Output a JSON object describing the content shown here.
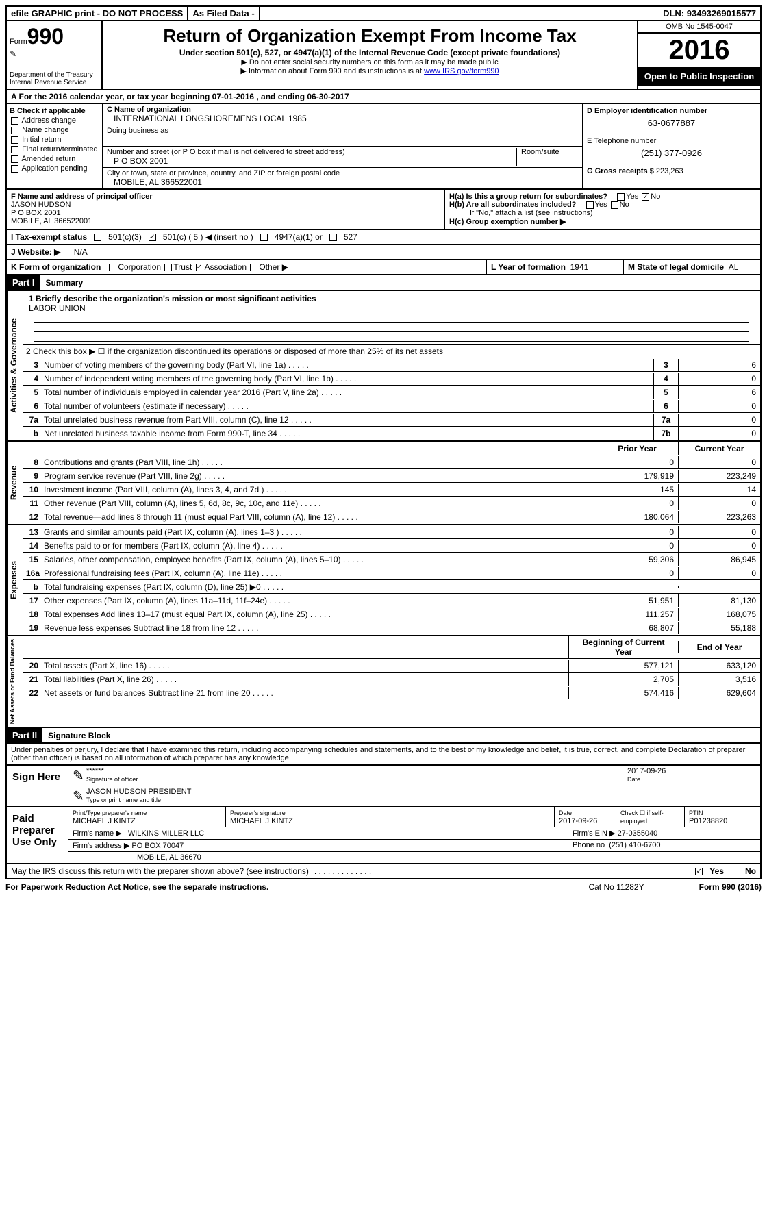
{
  "topbar": {
    "efile": "efile GRAPHIC print - DO NOT PROCESS",
    "asfiled": "As Filed Data -",
    "dln_label": "DLN:",
    "dln": "93493269015577"
  },
  "header": {
    "form_label": "Form",
    "form_num": "990",
    "dept1": "Department of the Treasury",
    "dept2": "Internal Revenue Service",
    "title": "Return of Organization Exempt From Income Tax",
    "subtitle": "Under section 501(c), 527, or 4947(a)(1) of the Internal Revenue Code (except private foundations)",
    "note1": "▶ Do not enter social security numbers on this form as it may be made public",
    "note2": "▶ Information about Form 990 and its instructions is at ",
    "note2_link": "www IRS gov/form990",
    "omb": "OMB No 1545-0047",
    "year": "2016",
    "open_pub": "Open to Public Inspection"
  },
  "rowA": "A  For the 2016 calendar year, or tax year beginning 07-01-2016   , and ending 06-30-2017",
  "colB": {
    "title": "B Check if applicable",
    "items": [
      "Address change",
      "Name change",
      "Initial return",
      "Final return/terminated",
      "Amended return",
      "Application pending"
    ]
  },
  "colC": {
    "c_label": "C Name of organization",
    "c_val": "INTERNATIONAL LONGSHOREMENS LOCAL 1985",
    "dba_label": "Doing business as",
    "addr_label": "Number and street (or P O  box if mail is not delivered to street address)",
    "room_label": "Room/suite",
    "addr_val": "P O BOX 2001",
    "city_label": "City or town, state or province, country, and ZIP or foreign postal code",
    "city_val": "MOBILE, AL  366522001"
  },
  "colD": {
    "d_label": "D Employer identification number",
    "d_val": "63-0677887",
    "e_label": "E Telephone number",
    "e_val": "(251) 377-0926",
    "g_label": "G Gross receipts $",
    "g_val": "223,263"
  },
  "rowF": {
    "f_label": "F  Name and address of principal officer",
    "name": "JASON HUDSON",
    "addr1": "P O BOX 2001",
    "addr2": "MOBILE, AL  366522001",
    "ha": "H(a)  Is this a group return for subordinates?",
    "hb": "H(b)  Are all subordinates included?",
    "hb_note": "If \"No,\" attach a list  (see instructions)",
    "hc": "H(c)  Group exemption number ▶",
    "yes": "Yes",
    "no": "No"
  },
  "rowI": {
    "label": "I   Tax-exempt status",
    "opt1": "501(c)(3)",
    "opt2": "501(c) ( 5 ) ◀ (insert no )",
    "opt3": "4947(a)(1) or",
    "opt4": "527"
  },
  "rowJ": {
    "label": "J   Website: ▶",
    "val": "N/A"
  },
  "rowK": {
    "label": "K Form of organization",
    "opts": [
      "Corporation",
      "Trust",
      "Association",
      "Other ▶"
    ],
    "l_label": "L Year of formation",
    "l_val": "1941",
    "m_label": "M State of legal domicile",
    "m_val": "AL"
  },
  "part1": {
    "hdr": "Part I",
    "title": "Summary"
  },
  "summary": {
    "q1_label": "1  Briefly describe the organization's mission or most significant activities",
    "q1_val": "LABOR UNION",
    "q2": "2   Check this box ▶ ☐  if the organization discontinued its operations or disposed of more than 25% of its net assets",
    "lines_ag": [
      {
        "n": "3",
        "t": "Number of voting members of the governing body (Part VI, line 1a)",
        "box": "3",
        "v": "6"
      },
      {
        "n": "4",
        "t": "Number of independent voting members of the governing body (Part VI, line 1b)",
        "box": "4",
        "v": "0"
      },
      {
        "n": "5",
        "t": "Total number of individuals employed in calendar year 2016 (Part V, line 2a)",
        "box": "5",
        "v": "6"
      },
      {
        "n": "6",
        "t": "Total number of volunteers (estimate if necessary)",
        "box": "6",
        "v": "0"
      },
      {
        "n": "7a",
        "t": "Total unrelated business revenue from Part VIII, column (C), line 12",
        "box": "7a",
        "v": "0"
      },
      {
        "n": "b",
        "t": "Net unrelated business taxable income from Form 990-T, line 34",
        "box": "7b",
        "v": "0"
      }
    ],
    "col_prior": "Prior Year",
    "col_curr": "Current Year",
    "rev": [
      {
        "n": "8",
        "t": "Contributions and grants (Part VIII, line 1h)",
        "p": "0",
        "c": "0"
      },
      {
        "n": "9",
        "t": "Program service revenue (Part VIII, line 2g)",
        "p": "179,919",
        "c": "223,249"
      },
      {
        "n": "10",
        "t": "Investment income (Part VIII, column (A), lines 3, 4, and 7d )",
        "p": "145",
        "c": "14"
      },
      {
        "n": "11",
        "t": "Other revenue (Part VIII, column (A), lines 5, 6d, 8c, 9c, 10c, and 11e)",
        "p": "0",
        "c": "0"
      },
      {
        "n": "12",
        "t": "Total revenue—add lines 8 through 11 (must equal Part VIII, column (A), line 12)",
        "p": "180,064",
        "c": "223,263"
      }
    ],
    "exp": [
      {
        "n": "13",
        "t": "Grants and similar amounts paid (Part IX, column (A), lines 1–3 )",
        "p": "0",
        "c": "0"
      },
      {
        "n": "14",
        "t": "Benefits paid to or for members (Part IX, column (A), line 4)",
        "p": "0",
        "c": "0"
      },
      {
        "n": "15",
        "t": "Salaries, other compensation, employee benefits (Part IX, column (A), lines 5–10)",
        "p": "59,306",
        "c": "86,945"
      },
      {
        "n": "16a",
        "t": "Professional fundraising fees (Part IX, column (A), line 11e)",
        "p": "0",
        "c": "0"
      },
      {
        "n": "b",
        "t": "Total fundraising expenses (Part IX, column (D), line 25) ▶0",
        "p": "",
        "c": ""
      },
      {
        "n": "17",
        "t": "Other expenses (Part IX, column (A), lines 11a–11d, 11f–24e)",
        "p": "51,951",
        "c": "81,130"
      },
      {
        "n": "18",
        "t": "Total expenses  Add lines 13–17 (must equal Part IX, column (A), line 25)",
        "p": "111,257",
        "c": "168,075"
      },
      {
        "n": "19",
        "t": "Revenue less expenses  Subtract line 18 from line 12",
        "p": "68,807",
        "c": "55,188"
      }
    ],
    "col_beg": "Beginning of Current Year",
    "col_end": "End of Year",
    "net": [
      {
        "n": "20",
        "t": "Total assets (Part X, line 16)",
        "p": "577,121",
        "c": "633,120"
      },
      {
        "n": "21",
        "t": "Total liabilities (Part X, line 26)",
        "p": "2,705",
        "c": "3,516"
      },
      {
        "n": "22",
        "t": "Net assets or fund balances  Subtract line 21 from line 20",
        "p": "574,416",
        "c": "629,604"
      }
    ],
    "vlabels": {
      "ag": "Activities & Governance",
      "rev": "Revenue",
      "exp": "Expenses",
      "net": "Net Assets or Fund Balances"
    }
  },
  "part2": {
    "hdr": "Part II",
    "title": "Signature Block"
  },
  "perjury": "Under penalties of perjury, I declare that I have examined this return, including accompanying schedules and statements, and to the best of my knowledge and belief, it is true, correct, and complete  Declaration of preparer (other than officer) is based on all information of which preparer has any knowledge",
  "sign": {
    "label": "Sign Here",
    "stars": "******",
    "sig_label": "Signature of officer",
    "date": "2017-09-26",
    "date_label": "Date",
    "name": "JASON HUDSON PRESIDENT",
    "name_label": "Type or print name and title"
  },
  "paid": {
    "label": "Paid Preparer Use Only",
    "prep_name_label": "Print/Type preparer's name",
    "prep_name": "MICHAEL J KINTZ",
    "prep_sig_label": "Preparer's signature",
    "prep_sig": "MICHAEL J KINTZ",
    "prep_date_label": "Date",
    "prep_date": "2017-09-26",
    "check_label": "Check ☐ if self-employed",
    "ptin_label": "PTIN",
    "ptin": "P01238820",
    "firm_name_label": "Firm's name     ▶",
    "firm_name": "WILKINS MILLER LLC",
    "firm_ein_label": "Firm's EIN ▶",
    "firm_ein": "27-0355040",
    "firm_addr_label": "Firm's address ▶",
    "firm_addr": "PO BOX 70047",
    "firm_city": "MOBILE, AL  36670",
    "phone_label": "Phone no",
    "phone": "(251) 410-6700"
  },
  "discuss": {
    "q": "May the IRS discuss this return with the preparer shown above? (see instructions)",
    "yes": "Yes",
    "no": "No"
  },
  "footer": {
    "left": "For Paperwork Reduction Act Notice, see the separate instructions.",
    "mid": "Cat  No  11282Y",
    "right": "Form 990 (2016)"
  }
}
